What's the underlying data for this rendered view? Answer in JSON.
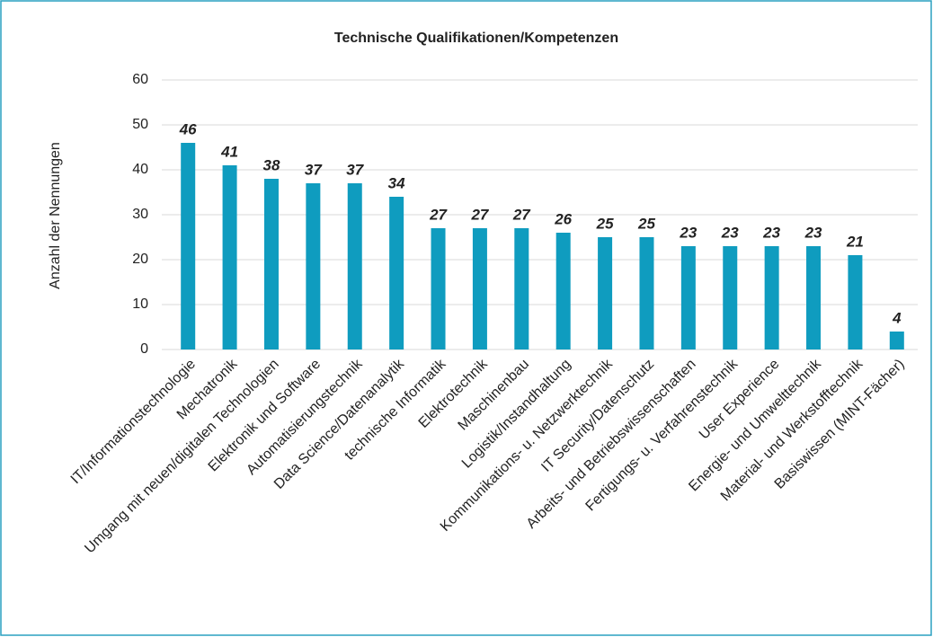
{
  "chart_data": {
    "type": "bar",
    "title": "Technische Qualifikationen/Kompetenzen",
    "y_label": "Anzahl der Nennungen",
    "categories": [
      "IT/Informationstechnologie",
      "Mechatronik",
      "Umgang mit neuen/digitalen Technologien",
      "Elektronik und Software",
      "Automatisierungstechnik",
      "Data Science/Datenanalytik",
      "technische Informatik",
      "Elektrotechnik",
      "Maschinenbau",
      "Logistik/Instandhaltung",
      "Kommunikations- u. Netzwerktechnik",
      "IT Security/Datenschutz",
      "Arbeits- und Betriebswissenschaften",
      "Fertigungs- u. Verfahrenstechnik",
      "User Experience",
      "Energie- und Umwelttechnik",
      "Material- und Werkstofftechnik",
      "Basiswissen (MINT-Fächer)"
    ],
    "values": [
      46,
      41,
      38,
      37,
      37,
      34,
      27,
      27,
      27,
      26,
      25,
      25,
      23,
      23,
      23,
      23,
      21,
      4
    ],
    "color": "#0f9cbf",
    "ylim": [
      0,
      60
    ],
    "yticks": [
      0,
      10,
      20,
      30,
      40,
      50,
      60
    ],
    "grid": true
  }
}
